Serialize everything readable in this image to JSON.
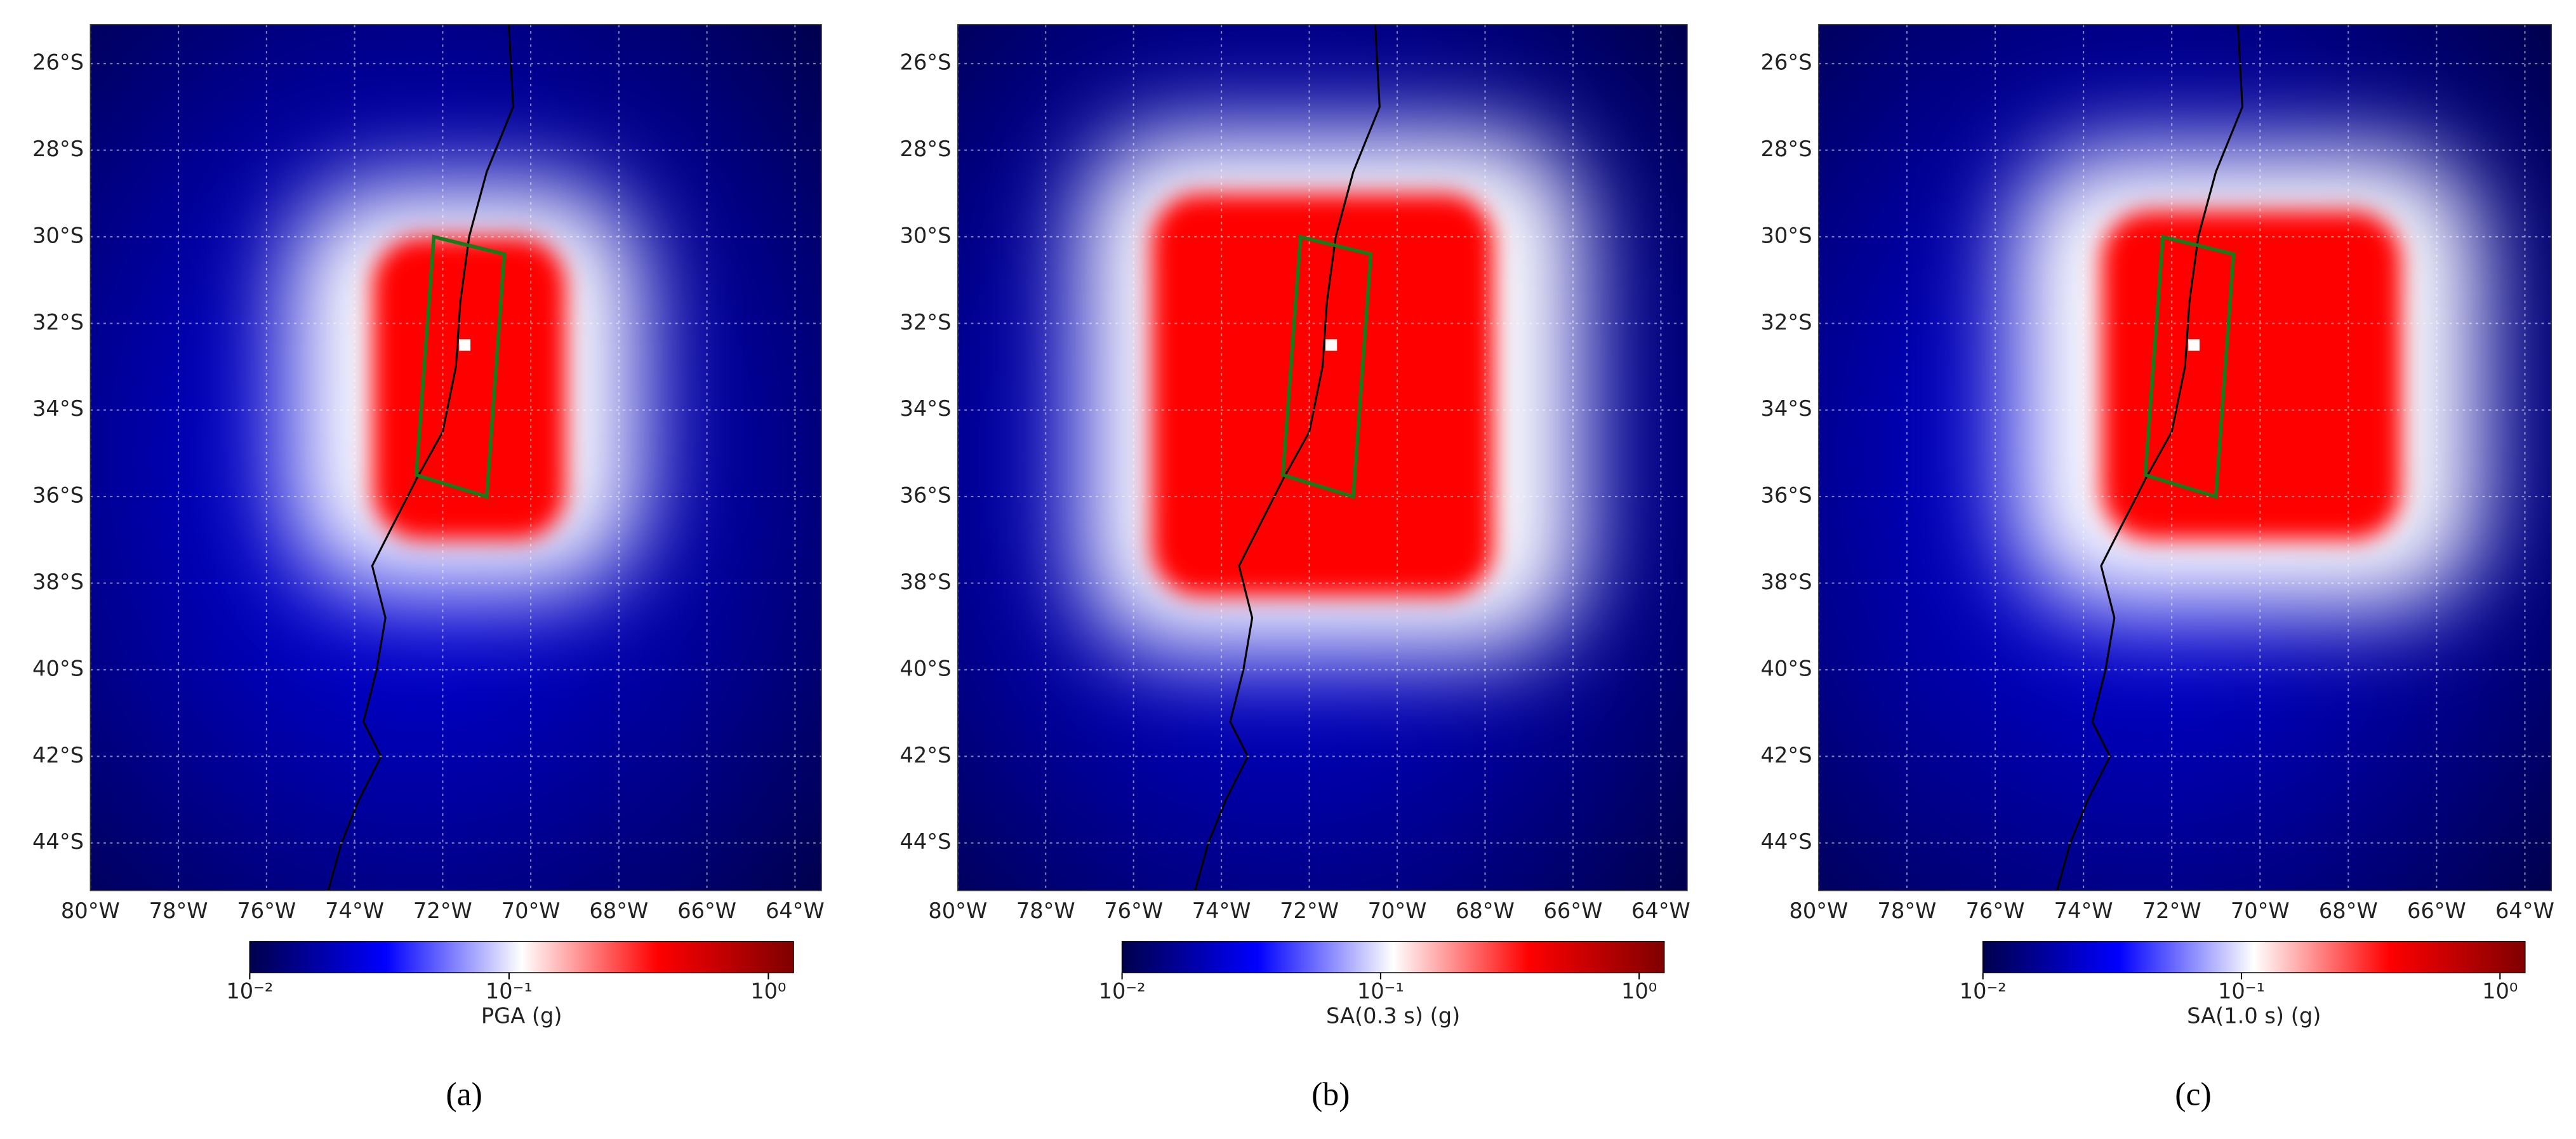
{
  "chart_data": [
    {
      "type": "map",
      "panel_label": "(a)",
      "colorbar_label": "PGA (g)",
      "xlim": [
        -80,
        -63.4
      ],
      "ylim": [
        -45.1,
        -25.1
      ],
      "grid": true,
      "xticks": [
        {
          "value": -80,
          "label": "80°W"
        },
        {
          "value": -78,
          "label": "78°W"
        },
        {
          "value": -76,
          "label": "76°W"
        },
        {
          "value": -74,
          "label": "74°W"
        },
        {
          "value": -72,
          "label": "72°W"
        },
        {
          "value": -70,
          "label": "70°W"
        },
        {
          "value": -68,
          "label": "68°W"
        },
        {
          "value": -66,
          "label": "66°W"
        },
        {
          "value": -64,
          "label": "64°W"
        }
      ],
      "yticks": [
        {
          "value": -26,
          "label": "26°S"
        },
        {
          "value": -28,
          "label": "28°S"
        },
        {
          "value": -30,
          "label": "30°S"
        },
        {
          "value": -32,
          "label": "32°S"
        },
        {
          "value": -34,
          "label": "34°S"
        },
        {
          "value": -36,
          "label": "36°S"
        },
        {
          "value": -38,
          "label": "38°S"
        },
        {
          "value": -40,
          "label": "40°S"
        },
        {
          "value": -42,
          "label": "42°S"
        },
        {
          "value": -44,
          "label": "44°S"
        }
      ],
      "colorbar": {
        "log": true,
        "lim": [
          0.01,
          1.25
        ],
        "ticks": [
          {
            "value": 0.01,
            "label": "10⁻²"
          },
          {
            "value": 0.1,
            "label": "10⁻¹"
          },
          {
            "value": 1,
            "label": "10⁰"
          }
        ]
      },
      "colormap": [
        "#00004c",
        "#0000ff",
        "#ffffff",
        "#ff0000",
        "#7f0000"
      ],
      "rupture": {
        "color": "#1a7a1a",
        "lon": [
          -72.2,
          -70.6,
          -71.0,
          -72.6
        ],
        "lat": [
          -30.0,
          -30.4,
          -36.0,
          -35.5
        ]
      },
      "epicenter": {
        "lon": -71.5,
        "lat": -32.5
      }
    },
    {
      "type": "map",
      "panel_label": "(b)",
      "colorbar_label": "SA(0.3 s) (g)",
      "xlim": [
        -80,
        -63.4
      ],
      "ylim": [
        -45.1,
        -25.1
      ],
      "grid": true,
      "xticks": [
        {
          "value": -80,
          "label": "80°W"
        },
        {
          "value": -78,
          "label": "78°W"
        },
        {
          "value": -76,
          "label": "76°W"
        },
        {
          "value": -74,
          "label": "74°W"
        },
        {
          "value": -72,
          "label": "72°W"
        },
        {
          "value": -70,
          "label": "70°W"
        },
        {
          "value": -68,
          "label": "68°W"
        },
        {
          "value": -66,
          "label": "66°W"
        },
        {
          "value": -64,
          "label": "64°W"
        }
      ],
      "yticks": [
        {
          "value": -26,
          "label": "26°S"
        },
        {
          "value": -28,
          "label": "28°S"
        },
        {
          "value": -30,
          "label": "30°S"
        },
        {
          "value": -32,
          "label": "32°S"
        },
        {
          "value": -34,
          "label": "34°S"
        },
        {
          "value": -36,
          "label": "36°S"
        },
        {
          "value": -38,
          "label": "38°S"
        },
        {
          "value": -40,
          "label": "40°S"
        },
        {
          "value": -42,
          "label": "42°S"
        },
        {
          "value": -44,
          "label": "44°S"
        }
      ],
      "colorbar": {
        "log": true,
        "lim": [
          0.01,
          1.25
        ],
        "ticks": [
          {
            "value": 0.01,
            "label": "10⁻²"
          },
          {
            "value": 0.1,
            "label": "10⁻¹"
          },
          {
            "value": 1,
            "label": "10⁰"
          }
        ]
      },
      "colormap": [
        "#00004c",
        "#0000ff",
        "#ffffff",
        "#ff0000",
        "#7f0000"
      ],
      "rupture": {
        "color": "#1a7a1a",
        "lon": [
          -72.2,
          -70.6,
          -71.0,
          -72.6
        ],
        "lat": [
          -30.0,
          -30.4,
          -36.0,
          -35.5
        ]
      },
      "epicenter": {
        "lon": -71.5,
        "lat": -32.5
      }
    },
    {
      "type": "map",
      "panel_label": "(c)",
      "colorbar_label": "SA(1.0 s) (g)",
      "xlim": [
        -80,
        -63.4
      ],
      "ylim": [
        -45.1,
        -25.1
      ],
      "grid": true,
      "xticks": [
        {
          "value": -80,
          "label": "80°W"
        },
        {
          "value": -78,
          "label": "78°W"
        },
        {
          "value": -76,
          "label": "76°W"
        },
        {
          "value": -74,
          "label": "74°W"
        },
        {
          "value": -72,
          "label": "72°W"
        },
        {
          "value": -70,
          "label": "70°W"
        },
        {
          "value": -68,
          "label": "68°W"
        },
        {
          "value": -66,
          "label": "66°W"
        },
        {
          "value": -64,
          "label": "64°W"
        }
      ],
      "yticks": [
        {
          "value": -26,
          "label": "26°S"
        },
        {
          "value": -28,
          "label": "28°S"
        },
        {
          "value": -30,
          "label": "30°S"
        },
        {
          "value": -32,
          "label": "32°S"
        },
        {
          "value": -34,
          "label": "34°S"
        },
        {
          "value": -36,
          "label": "36°S"
        },
        {
          "value": -38,
          "label": "38°S"
        },
        {
          "value": -40,
          "label": "40°S"
        },
        {
          "value": -42,
          "label": "42°S"
        },
        {
          "value": -44,
          "label": "44°S"
        }
      ],
      "colorbar": {
        "log": true,
        "lim": [
          0.01,
          1.25
        ],
        "ticks": [
          {
            "value": 0.01,
            "label": "10⁻²"
          },
          {
            "value": 0.1,
            "label": "10⁻¹"
          },
          {
            "value": 1,
            "label": "10⁰"
          }
        ]
      },
      "colormap": [
        "#00004c",
        "#0000ff",
        "#ffffff",
        "#ff0000",
        "#7f0000"
      ],
      "rupture": {
        "color": "#1a7a1a",
        "lon": [
          -72.2,
          -70.6,
          -71.0,
          -72.6
        ],
        "lat": [
          -30.0,
          -30.4,
          -36.0,
          -35.5
        ]
      },
      "epicenter": {
        "lon": -71.5,
        "lat": -32.5
      }
    }
  ]
}
